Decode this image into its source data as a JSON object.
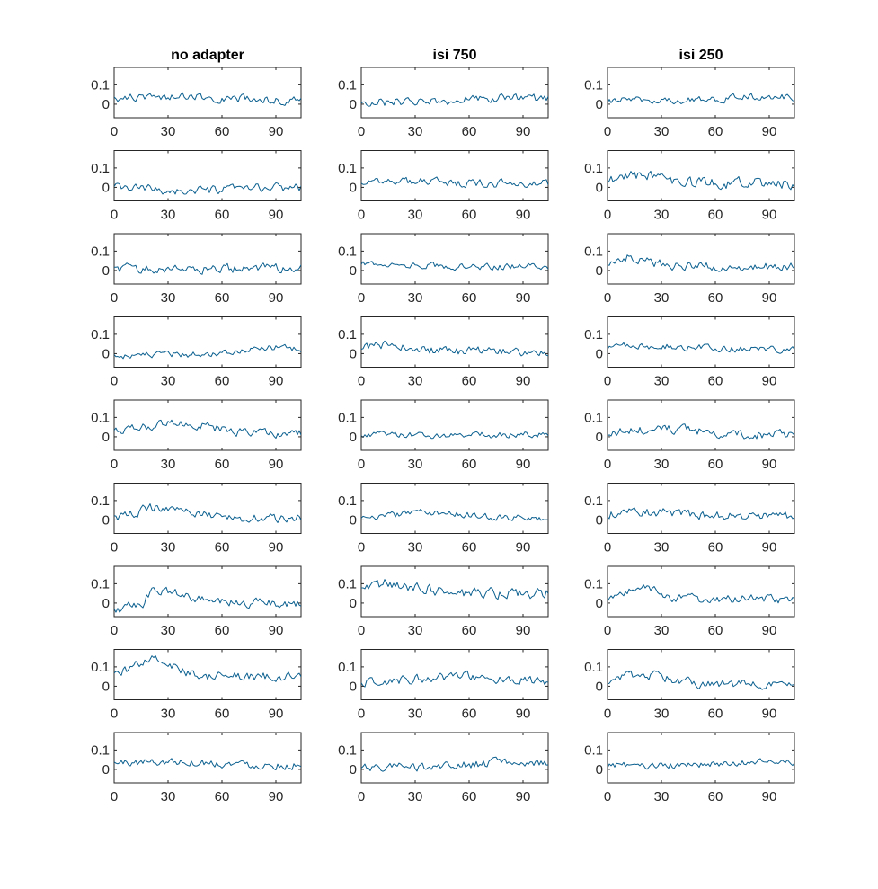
{
  "chart_data": {
    "type": "line",
    "layout": "grid",
    "rows": 9,
    "columns": [
      {
        "title": "no adapter",
        "seed": 11
      },
      {
        "title": "isi 750",
        "seed": 29
      },
      {
        "title": "isi 250",
        "seed": 47
      }
    ],
    "xlim": [
      0,
      104
    ],
    "ylim": [
      -0.07,
      0.19
    ],
    "xticks": [
      0,
      30,
      60,
      90
    ],
    "yticks": [
      0,
      0.1
    ],
    "xtick_labels": [
      "0",
      "30",
      "60",
      "90"
    ],
    "ytick_labels": [
      "0",
      "0.1"
    ],
    "grid": false,
    "n_points": 105,
    "line_color": "#0a5f8f",
    "panels": [
      [
        {
          "base": 0.02,
          "noise": 0.018,
          "bump": 0.02,
          "bump_at": 30,
          "bump_width": 40
        },
        {
          "base": 0.0,
          "noise": 0.02,
          "bump": -0.02,
          "bump_at": 45,
          "bump_width": 30
        },
        {
          "base": 0.01,
          "noise": 0.02,
          "bump": 0.0,
          "bump_at": 50,
          "bump_width": 30
        },
        {
          "base": -0.01,
          "noise": 0.015,
          "bump": 0.04,
          "bump_at": 95,
          "bump_width": 40
        },
        {
          "base": 0.02,
          "noise": 0.02,
          "bump": 0.05,
          "bump_at": 35,
          "bump_width": 25
        },
        {
          "base": 0.01,
          "noise": 0.02,
          "bump": 0.06,
          "bump_at": 28,
          "bump_width": 18
        },
        {
          "base": 0.0,
          "noise": 0.02,
          "bump": 0.06,
          "bump_at": 25,
          "bump_width": 20,
          "step_at": 18,
          "step": 0.05
        },
        {
          "base": 0.05,
          "noise": 0.02,
          "bump": 0.09,
          "bump_at": 22,
          "bump_width": 15
        },
        {
          "base": 0.02,
          "noise": 0.018,
          "bump": 0.02,
          "bump_at": 30,
          "bump_width": 40
        }
      ],
      [
        {
          "base": 0.01,
          "noise": 0.02,
          "bump": 0.02,
          "bump_at": 80,
          "bump_width": 40
        },
        {
          "base": 0.02,
          "noise": 0.018,
          "bump": 0.01,
          "bump_at": 20,
          "bump_width": 30
        },
        {
          "base": 0.02,
          "noise": 0.015,
          "bump": 0.02,
          "bump_at": 10,
          "bump_width": 20
        },
        {
          "base": 0.01,
          "noise": 0.02,
          "bump": 0.03,
          "bump_at": 15,
          "bump_width": 20
        },
        {
          "base": 0.01,
          "noise": 0.015,
          "bump": 0.0,
          "bump_at": 50,
          "bump_width": 30
        },
        {
          "base": 0.01,
          "noise": 0.015,
          "bump": 0.03,
          "bump_at": 40,
          "bump_width": 25
        },
        {
          "base": 0.05,
          "noise": 0.025,
          "bump": 0.05,
          "bump_at": 15,
          "bump_width": 25
        },
        {
          "base": 0.02,
          "noise": 0.02,
          "bump": 0.03,
          "bump_at": 55,
          "bump_width": 35
        },
        {
          "base": 0.01,
          "noise": 0.02,
          "bump": 0.02,
          "bump_at": 80,
          "bump_width": 40
        }
      ],
      [
        {
          "base": 0.02,
          "noise": 0.015,
          "bump": 0.02,
          "bump_at": 90,
          "bump_width": 30
        },
        {
          "base": 0.02,
          "noise": 0.025,
          "bump": 0.04,
          "bump_at": 15,
          "bump_width": 20
        },
        {
          "base": 0.02,
          "noise": 0.02,
          "bump": 0.05,
          "bump_at": 12,
          "bump_width": 15
        },
        {
          "base": 0.02,
          "noise": 0.015,
          "bump": 0.02,
          "bump_at": 20,
          "bump_width": 40
        },
        {
          "base": 0.01,
          "noise": 0.02,
          "bump": 0.03,
          "bump_at": 30,
          "bump_width": 30
        },
        {
          "base": 0.02,
          "noise": 0.02,
          "bump": 0.02,
          "bump_at": 20,
          "bump_width": 30
        },
        {
          "base": 0.02,
          "noise": 0.02,
          "bump": 0.07,
          "bump_at": 20,
          "bump_width": 12
        },
        {
          "base": 0.01,
          "noise": 0.02,
          "bump": 0.05,
          "bump_at": 20,
          "bump_width": 20
        },
        {
          "base": 0.02,
          "noise": 0.015,
          "bump": 0.02,
          "bump_at": 90,
          "bump_width": 30
        }
      ]
    ]
  }
}
